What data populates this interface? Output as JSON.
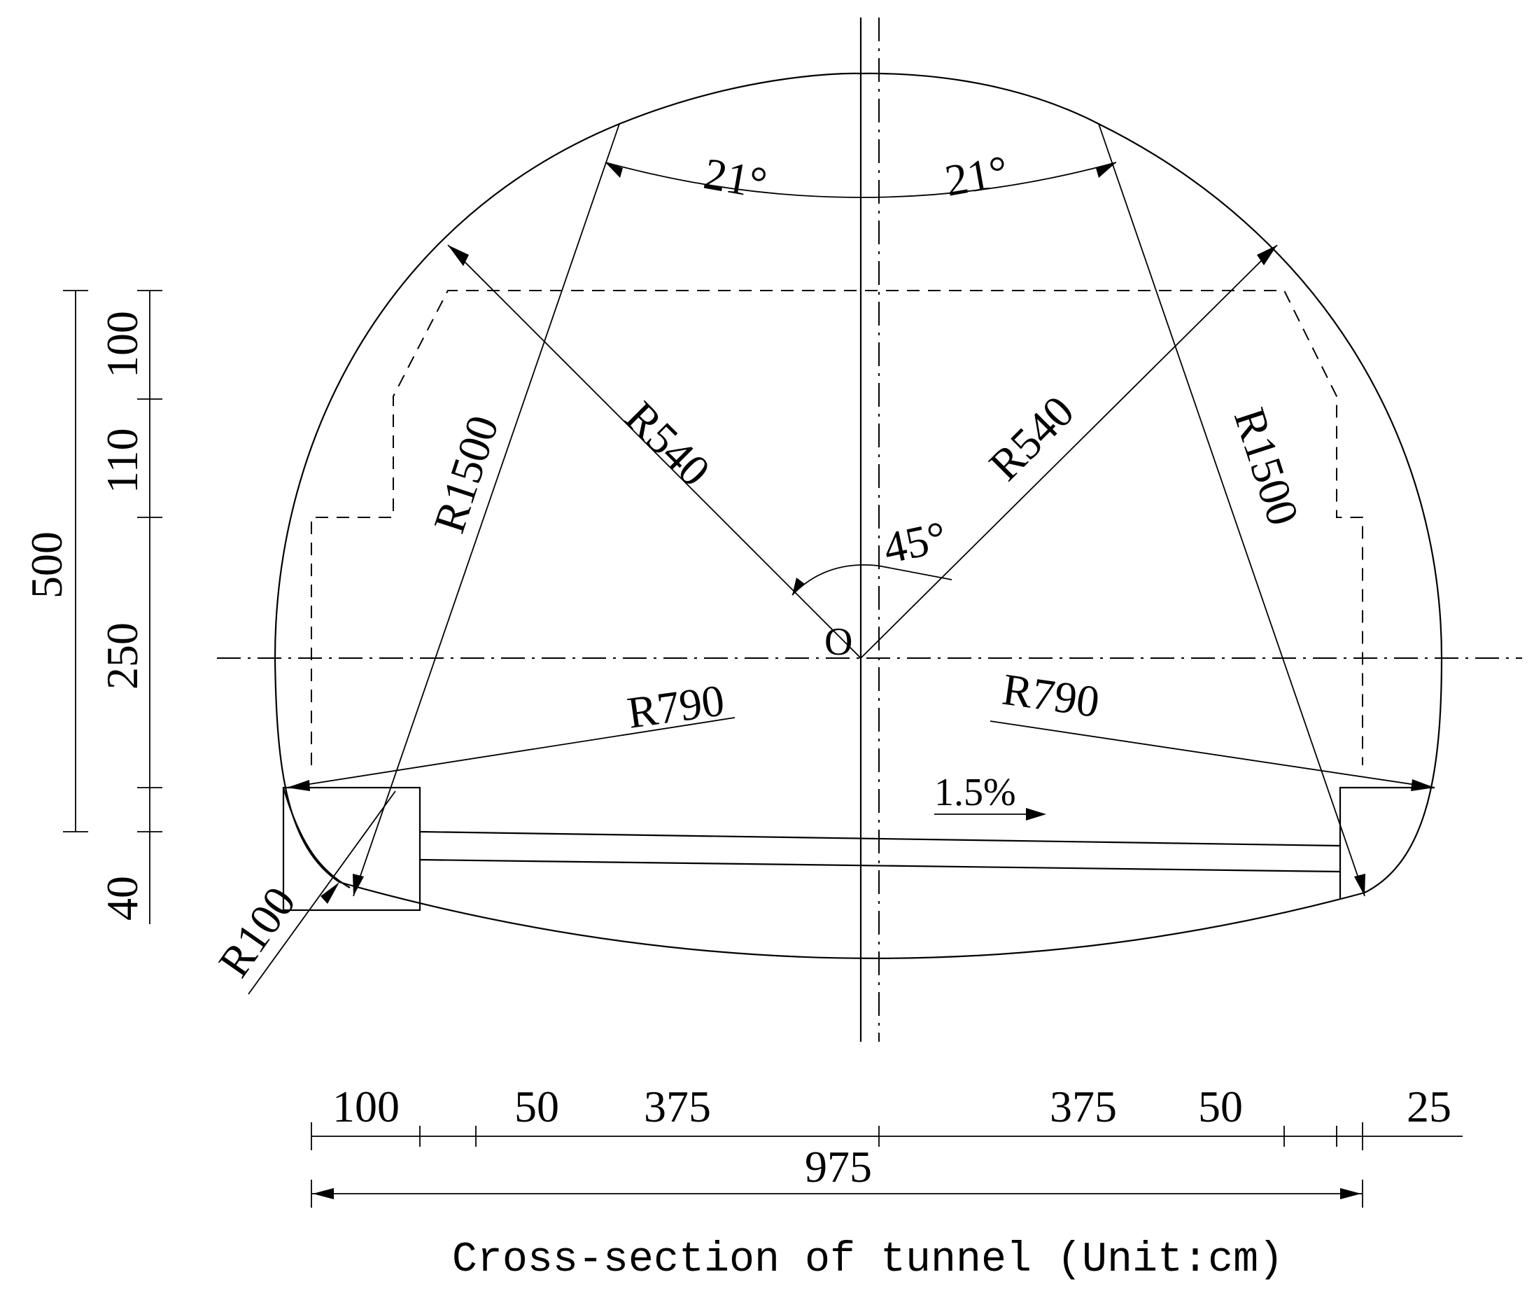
{
  "caption": "Cross-section of tunnel (Unit:cm)",
  "labels": {
    "origin": "O",
    "angle_top_left": "21°",
    "angle_top_right": "21°",
    "angle_center": "45°",
    "r540_left": "R540",
    "r540_right": "R540",
    "r1500_left": "R1500",
    "r1500_right": "R1500",
    "r790_left": "R790",
    "r790_right": "R790",
    "r100": "R100",
    "slope": "1.5%"
  },
  "dimensions_vertical": {
    "total": "500",
    "top": "100",
    "upper": "110",
    "middle": "250",
    "bottom": "40"
  },
  "dimensions_horizontal": {
    "left_sidewalk": "100",
    "left_strip": "50",
    "left_lane": "375",
    "right_lane": "375",
    "right_strip": "50",
    "right_margin": "25",
    "total_width": "975"
  }
}
